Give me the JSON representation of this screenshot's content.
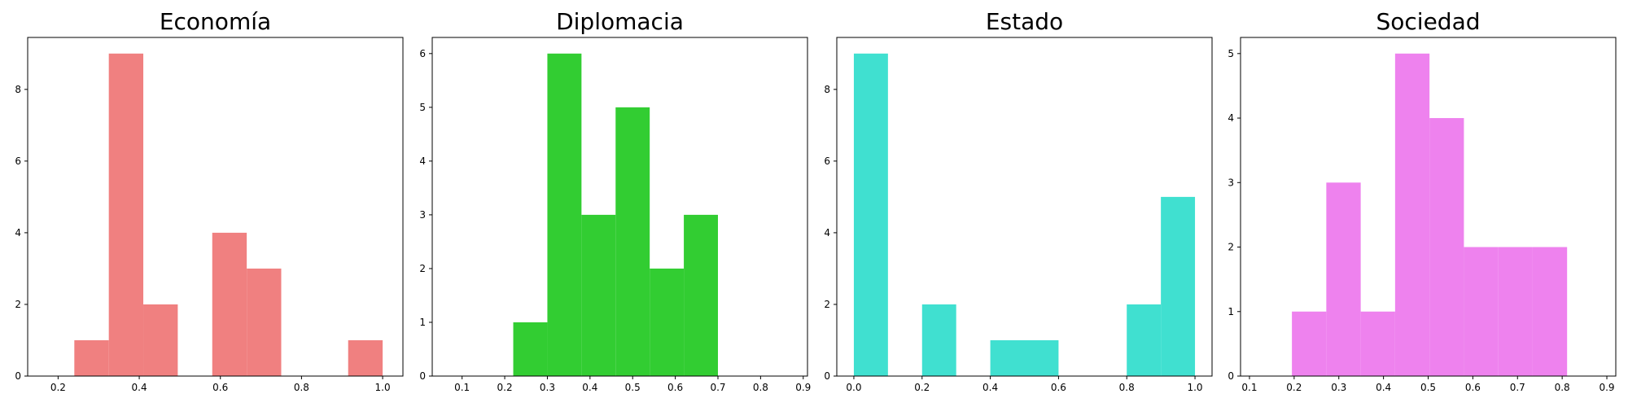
{
  "chart_data": [
    {
      "type": "bar",
      "title": "Economía",
      "color": "#f08080",
      "xlim": [
        0.125,
        1.05
      ],
      "ylim": [
        0,
        9.45
      ],
      "xticks": [
        0.2,
        0.4,
        0.6,
        0.8,
        1.0
      ],
      "xtick_labels": [
        "0.2",
        "0.4",
        "0.6",
        "0.8",
        "1.0"
      ],
      "yticks": [
        0,
        2,
        4,
        6,
        8
      ],
      "ytick_labels": [
        "0",
        "2",
        "4",
        "6",
        "8"
      ],
      "bins": [
        {
          "start": 0.24,
          "end": 0.325,
          "value": 1
        },
        {
          "start": 0.325,
          "end": 0.41,
          "value": 9
        },
        {
          "start": 0.41,
          "end": 0.495,
          "value": 2
        },
        {
          "start": 0.495,
          "end": 0.58,
          "value": 0
        },
        {
          "start": 0.58,
          "end": 0.665,
          "value": 4
        },
        {
          "start": 0.665,
          "end": 0.75,
          "value": 3
        },
        {
          "start": 0.75,
          "end": 0.835,
          "value": 0
        },
        {
          "start": 0.835,
          "end": 0.915,
          "value": 0
        },
        {
          "start": 0.915,
          "end": 1.0,
          "value": 1
        }
      ]
    },
    {
      "type": "bar",
      "title": "Diplomacia",
      "color": "#32cd32",
      "xlim": [
        0.03,
        0.91
      ],
      "ylim": [
        0,
        6.3
      ],
      "xticks": [
        0.1,
        0.2,
        0.3,
        0.4,
        0.5,
        0.6,
        0.7,
        0.8,
        0.9
      ],
      "xtick_labels": [
        "0.1",
        "0.2",
        "0.3",
        "0.4",
        "0.5",
        "0.6",
        "0.7",
        "0.8",
        "0.9"
      ],
      "yticks": [
        0,
        1,
        2,
        3,
        4,
        5,
        6
      ],
      "ytick_labels": [
        "0",
        "1",
        "2",
        "3",
        "4",
        "5",
        "6"
      ],
      "bins": [
        {
          "start": 0.22,
          "end": 0.3,
          "value": 1
        },
        {
          "start": 0.3,
          "end": 0.38,
          "value": 6
        },
        {
          "start": 0.38,
          "end": 0.46,
          "value": 3
        },
        {
          "start": 0.46,
          "end": 0.54,
          "value": 5
        },
        {
          "start": 0.54,
          "end": 0.62,
          "value": 2
        },
        {
          "start": 0.62,
          "end": 0.7,
          "value": 3
        }
      ]
    },
    {
      "type": "bar",
      "title": "Estado",
      "color": "#40e0d0",
      "xlim": [
        -0.05,
        1.05
      ],
      "ylim": [
        0,
        9.45
      ],
      "xticks": [
        0.0,
        0.2,
        0.4,
        0.6,
        0.8,
        1.0
      ],
      "xtick_labels": [
        "0.0",
        "0.2",
        "0.4",
        "0.6",
        "0.8",
        "1.0"
      ],
      "yticks": [
        0,
        2,
        4,
        6,
        8
      ],
      "ytick_labels": [
        "0",
        "2",
        "4",
        "6",
        "8"
      ],
      "bins": [
        {
          "start": 0.0,
          "end": 0.1,
          "value": 9
        },
        {
          "start": 0.1,
          "end": 0.2,
          "value": 0
        },
        {
          "start": 0.2,
          "end": 0.3,
          "value": 2
        },
        {
          "start": 0.3,
          "end": 0.4,
          "value": 0
        },
        {
          "start": 0.4,
          "end": 0.5,
          "value": 1
        },
        {
          "start": 0.5,
          "end": 0.6,
          "value": 1
        },
        {
          "start": 0.6,
          "end": 0.7,
          "value": 0
        },
        {
          "start": 0.7,
          "end": 0.8,
          "value": 0
        },
        {
          "start": 0.8,
          "end": 0.9,
          "value": 2
        },
        {
          "start": 0.9,
          "end": 1.0,
          "value": 5
        }
      ]
    },
    {
      "type": "bar",
      "title": "Sociedad",
      "color": "#ee82ee",
      "xlim": [
        0.08,
        0.92
      ],
      "ylim": [
        0,
        5.25
      ],
      "xticks": [
        0.1,
        0.2,
        0.3,
        0.4,
        0.5,
        0.6,
        0.7,
        0.8,
        0.9
      ],
      "xtick_labels": [
        "0.1",
        "0.2",
        "0.3",
        "0.4",
        "0.5",
        "0.6",
        "0.7",
        "0.8",
        "0.9"
      ],
      "yticks": [
        0,
        1,
        2,
        3,
        4,
        5
      ],
      "ytick_labels": [
        "0",
        "1",
        "2",
        "3",
        "4",
        "5"
      ],
      "bins": [
        {
          "start": 0.195,
          "end": 0.272,
          "value": 1
        },
        {
          "start": 0.272,
          "end": 0.349,
          "value": 3
        },
        {
          "start": 0.349,
          "end": 0.426,
          "value": 1
        },
        {
          "start": 0.426,
          "end": 0.503,
          "value": 5
        },
        {
          "start": 0.503,
          "end": 0.58,
          "value": 4
        },
        {
          "start": 0.58,
          "end": 0.657,
          "value": 2
        },
        {
          "start": 0.657,
          "end": 0.734,
          "value": 2
        },
        {
          "start": 0.734,
          "end": 0.811,
          "value": 2
        }
      ]
    }
  ]
}
